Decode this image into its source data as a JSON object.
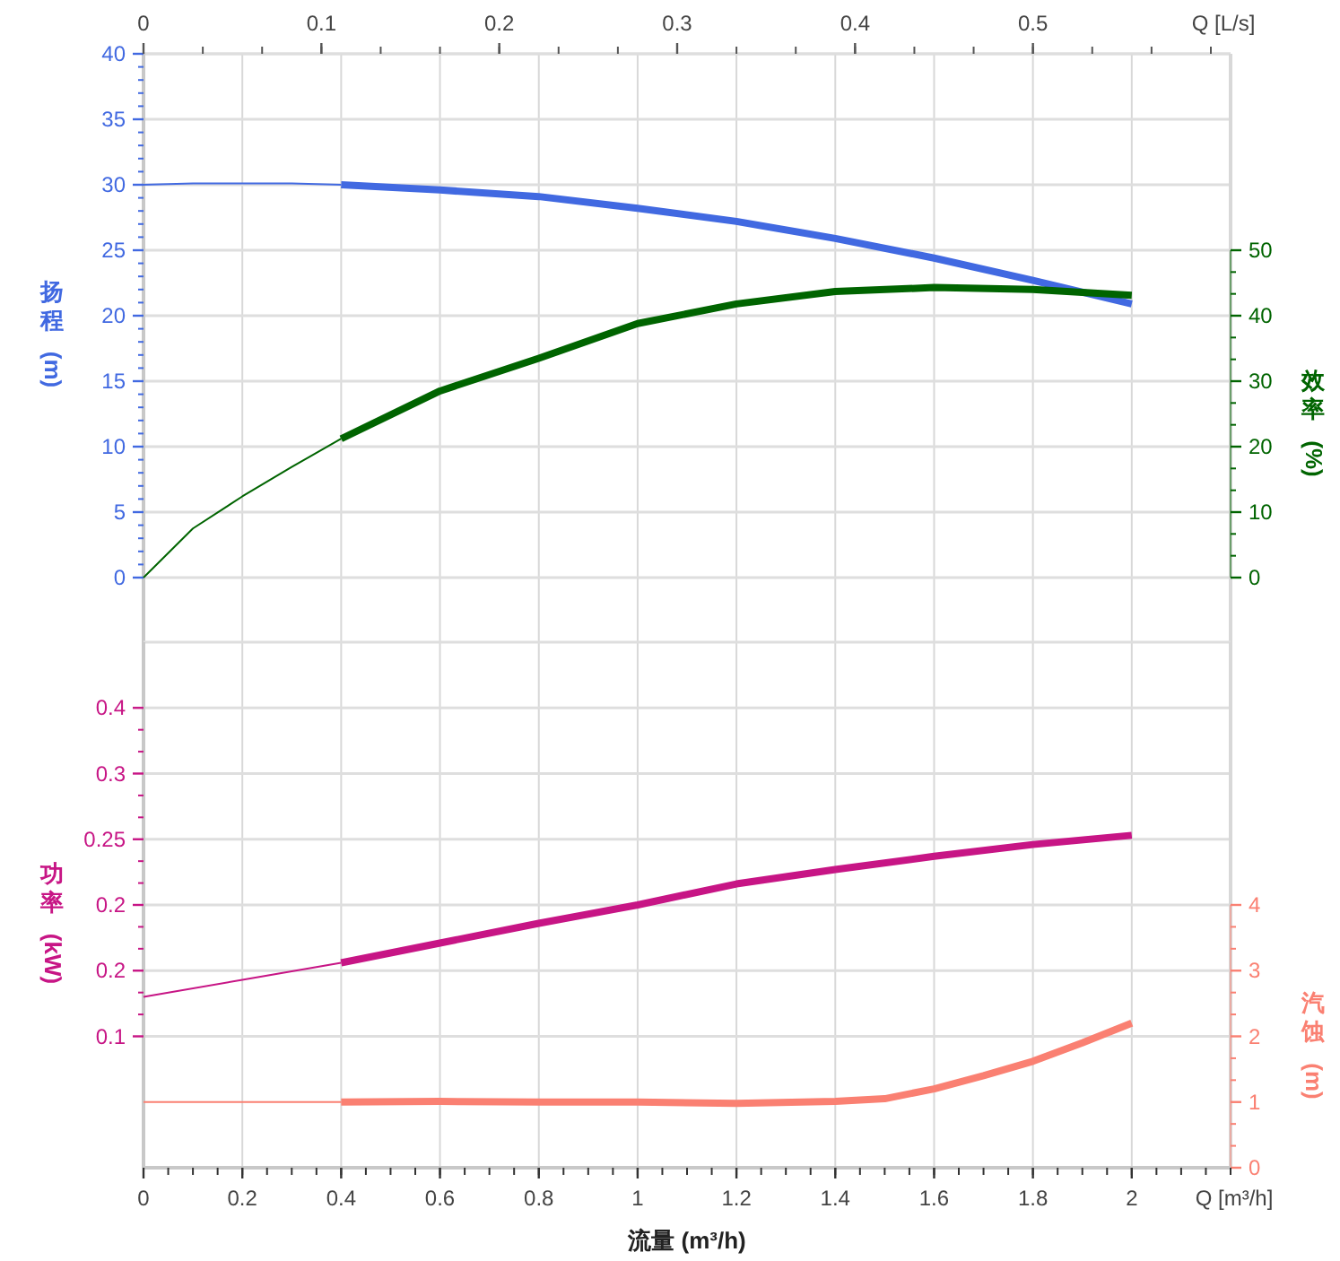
{
  "chart_data": [
    {
      "type": "line",
      "x2label": "Q [L/s]",
      "ylabel": "扬程 (m)",
      "y2label": "效率 (%)",
      "xlim": [
        0,
        2.2
      ],
      "xticks": [
        0,
        0.2,
        0.4,
        0.6,
        0.8,
        1,
        1.2,
        1.4,
        1.6,
        1.8,
        2
      ],
      "x2lim": [
        0,
        0.6111
      ],
      "x2ticks": [
        0,
        0.1,
        0.2,
        0.3,
        0.4,
        0.5
      ],
      "ylim": [
        0,
        40
      ],
      "yticks": [
        0,
        5,
        10,
        15,
        20,
        25,
        30,
        35,
        40
      ],
      "y2lim": [
        0,
        80
      ],
      "y2ticks": [
        0,
        10,
        20,
        30,
        40,
        50
      ],
      "grid": true,
      "marker": "none",
      "tick_labels": "y",
      "series": [
        {
          "color": "#4169e1",
          "x": [
            0,
            0.1,
            0.2,
            0.3,
            0.4
          ],
          "values": [
            30,
            30.1,
            30.1,
            30.1,
            30
          ]
        },
        {
          "color": "#4169e1",
          "x": [
            0.4,
            0.6,
            0.8,
            1,
            1.2,
            1.4,
            1.6,
            1.8,
            2
          ],
          "values": [
            30,
            29.6,
            29.1,
            28.2,
            27.2,
            25.9,
            24.4,
            22.7,
            20.9
          ]
        },
        {
          "color": "#006400",
          "axis": "y2",
          "x": [
            0,
            0.1,
            0.2,
            0.3,
            0.4
          ],
          "values": [
            0,
            7.5,
            12.4,
            16.9,
            21.2
          ]
        },
        {
          "color": "#006400",
          "axis": "y2",
          "x": [
            0.4,
            0.6,
            0.8,
            1,
            1.2,
            1.4,
            1.6,
            1.8,
            2
          ],
          "values": [
            21.2,
            28.5,
            33.5,
            38.8,
            41.8,
            43.7,
            44.3,
            44.0,
            43.1
          ]
        }
      ]
    },
    {
      "type": "line",
      "xlabel": "流量 (m³/h)",
      "ylabel": "功率 (kW)",
      "y2label": "汽蚀 (m)",
      "annotations": [
        "Q [m³/h]"
      ],
      "xlim": [
        0,
        2.2
      ],
      "xticks": [
        0,
        0.2,
        0.4,
        0.6,
        0.8,
        1,
        1.2,
        1.4,
        1.6,
        1.8,
        2
      ],
      "ylim": [
        0,
        0.4
      ],
      "yticks": [
        {
          "value": 0.1,
          "label": "0.1"
        },
        {
          "value": 0.15,
          "label": "0.2"
        },
        {
          "value": 0.2,
          "label": "0.2"
        },
        {
          "value": 0.25,
          "label": "0.25"
        },
        {
          "value": 0.3,
          "label": "0.3"
        },
        {
          "value": 0.35,
          "label": "0.4"
        }
      ],
      "y2lim": [
        0,
        8
      ],
      "y2ticks": [
        0,
        1,
        2,
        3,
        4
      ],
      "grid": true,
      "marker": "none",
      "series": [
        {
          "color": "#c71585",
          "x": [
            0,
            0.2,
            0.4
          ],
          "values": [
            0.13,
            0.143,
            0.156
          ]
        },
        {
          "color": "#c71585",
          "x": [
            0.4,
            0.6,
            0.8,
            1,
            1.2,
            1.4,
            1.6,
            1.8,
            2
          ],
          "values": [
            0.156,
            0.171,
            0.186,
            0.2,
            0.216,
            0.227,
            0.237,
            0.246,
            0.253
          ]
        },
        {
          "color": "#fa8072",
          "axis": "y2",
          "x": [
            0,
            0.2,
            0.4
          ],
          "values": [
            1,
            1,
            1
          ]
        },
        {
          "color": "#fa8072",
          "axis": "y2",
          "x": [
            0.4,
            0.6,
            0.8,
            1,
            1.2,
            1.4,
            1.5,
            1.6,
            1.7,
            1.8,
            1.9,
            2
          ],
          "values": [
            1,
            1.01,
            1,
            1,
            0.98,
            1.01,
            1.05,
            1.2,
            1.4,
            1.62,
            1.9,
            2.2
          ]
        }
      ]
    }
  ]
}
